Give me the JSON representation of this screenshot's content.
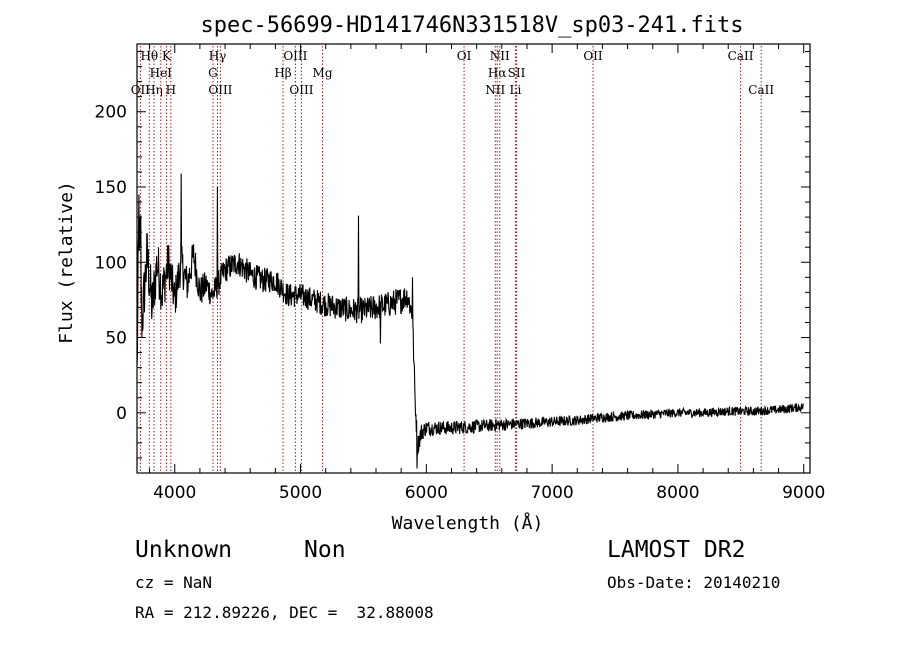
{
  "chart_data": {
    "type": "line",
    "title": "spec-56699-HD141746N331518V_sp03-241.fits",
    "xlabel": "Wavelength (Å)",
    "ylabel": "Flux (relative)",
    "xlim": [
      3700,
      9050
    ],
    "ylim": [
      -40,
      245
    ],
    "xticks": [
      4000,
      5000,
      6000,
      7000,
      8000,
      9000
    ],
    "yticks": [
      0,
      50,
      100,
      150,
      200
    ],
    "grid": false,
    "spectrum_anchors": [
      [
        3700,
        25
      ],
      [
        3715,
        130
      ],
      [
        3740,
        60
      ],
      [
        3780,
        105
      ],
      [
        3820,
        70
      ],
      [
        3860,
        100
      ],
      [
        3900,
        80
      ],
      [
        3950,
        100
      ],
      [
        4000,
        75
      ],
      [
        4050,
        100
      ],
      [
        4100,
        85
      ],
      [
        4150,
        105
      ],
      [
        4200,
        80
      ],
      [
        4250,
        85
      ],
      [
        4300,
        78
      ],
      [
        4400,
        95
      ],
      [
        4500,
        100
      ],
      [
        4600,
        92
      ],
      [
        4700,
        88
      ],
      [
        4800,
        88
      ],
      [
        4900,
        78
      ],
      [
        5000,
        78
      ],
      [
        5100,
        75
      ],
      [
        5200,
        72
      ],
      [
        5300,
        70
      ],
      [
        5400,
        68
      ],
      [
        5500,
        68
      ],
      [
        5600,
        70
      ],
      [
        5700,
        72
      ],
      [
        5800,
        75
      ],
      [
        5850,
        78
      ],
      [
        5890,
        65
      ],
      [
        5910,
        10
      ],
      [
        5930,
        -22
      ],
      [
        5960,
        -13
      ],
      [
        6000,
        -10
      ],
      [
        6200,
        -10
      ],
      [
        6400,
        -9
      ],
      [
        6600,
        -8
      ],
      [
        6800,
        -7
      ],
      [
        7000,
        -6
      ],
      [
        7200,
        -5
      ],
      [
        7400,
        -3
      ],
      [
        7600,
        -2
      ],
      [
        7800,
        -1
      ],
      [
        8000,
        0
      ],
      [
        8200,
        0
      ],
      [
        8400,
        1
      ],
      [
        8600,
        1
      ],
      [
        8800,
        2
      ],
      [
        9000,
        4
      ]
    ],
    "spectrum_spikes": [
      [
        3715,
        145
      ],
      [
        3730,
        131
      ],
      [
        4050,
        159
      ],
      [
        4340,
        150
      ],
      [
        5460,
        131
      ],
      [
        5635,
        46
      ],
      [
        5890,
        90
      ],
      [
        5925,
        -37
      ]
    ],
    "noise_amplitude": [
      [
        3700,
        22
      ],
      [
        4000,
        14
      ],
      [
        4300,
        9
      ],
      [
        5000,
        8
      ],
      [
        5800,
        9
      ],
      [
        5900,
        8
      ],
      [
        6000,
        5
      ],
      [
        7000,
        3.5
      ],
      [
        8000,
        3
      ],
      [
        9000,
        3
      ]
    ],
    "spectral_lines": [
      {
        "label": "Hθ",
        "x": 3798,
        "row": 1
      },
      {
        "label": "Hη",
        "x": 3835,
        "row": 3
      },
      {
        "label": "HeI",
        "x": 3889,
        "row": 2
      },
      {
        "label": "K",
        "x": 3934,
        "row": 1
      },
      {
        "label": "H",
        "x": 3969,
        "row": 3
      },
      {
        "label": "OII",
        "x": 3727,
        "row": 3
      },
      {
        "label": "Hγ",
        "x": 4340,
        "row": 1
      },
      {
        "label": "G",
        "x": 4304,
        "row": 2
      },
      {
        "label": "OIII",
        "x": 4363,
        "row": 3
      },
      {
        "label": "Hβ",
        "x": 4861,
        "row": 2
      },
      {
        "label": "OIII",
        "x": 4959,
        "row": 1
      },
      {
        "label": "OIII",
        "x": 5007,
        "row": 3
      },
      {
        "label": "Mg",
        "x": 5175,
        "row": 2
      },
      {
        "label": "OI",
        "x": 6300,
        "row": 1
      },
      {
        "label": "NII",
        "x": 6548,
        "row": 3
      },
      {
        "label": "NII",
        "x": 6584,
        "row": 1
      },
      {
        "label": "Hα",
        "x": 6563,
        "row": 2
      },
      {
        "label": "SII",
        "x": 6717,
        "row": 2
      },
      {
        "label": "Li",
        "x": 6708,
        "row": 3
      },
      {
        "label": "OII",
        "x": 7325,
        "row": 1
      },
      {
        "label": "CaII",
        "x": 8498,
        "row": 1
      },
      {
        "label": "CaII",
        "x": 8662,
        "row": 3
      }
    ]
  },
  "info": {
    "class": "Unknown",
    "subclass": "Non",
    "survey": "LAMOST DR2",
    "cz": "cz = NaN",
    "obs_date": "Obs-Date: 20140210",
    "coords": "RA = 212.89226, DEC =  32.88008"
  },
  "colors": {
    "spectrum": "#000000",
    "line_markers": "#a02020",
    "axes": "#000000"
  }
}
